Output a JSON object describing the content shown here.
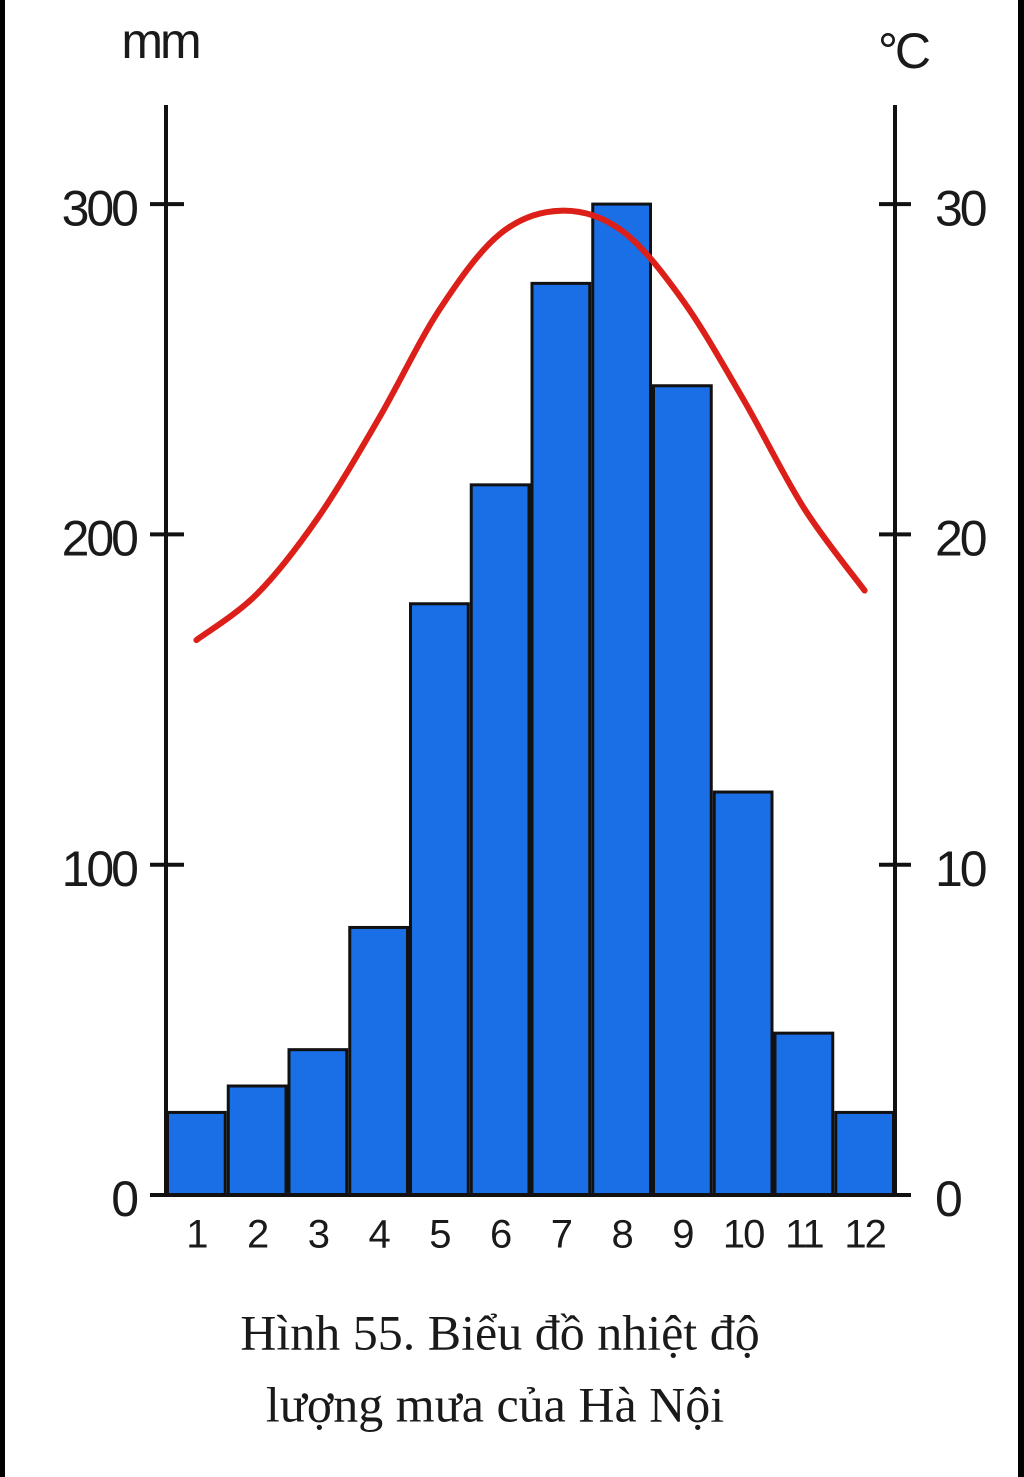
{
  "chart_data": {
    "type": "bar",
    "title_lines": [
      "Hình 55. Biểu đồ nhiệt độ",
      "lượng mưa của Hà Nội"
    ],
    "y_label": "mm",
    "y2_label": "°C",
    "categories": [
      "1",
      "2",
      "3",
      "4",
      "5",
      "6",
      "7",
      "8",
      "9",
      "10",
      "11",
      "12"
    ],
    "series": [
      {
        "type": "bar",
        "color": "#1a6ee6",
        "values": [
          25,
          33,
          44,
          81,
          179,
          215,
          276,
          300,
          245,
          122,
          49,
          25
        ]
      },
      {
        "type": "line",
        "axis": "y2",
        "color": "#dd1f1a",
        "values": [
          16.8,
          18.2,
          20.5,
          23.5,
          26.8,
          29.1,
          29.8,
          29.2,
          27.1,
          24.1,
          20.8,
          18.3
        ]
      }
    ],
    "ylim": [
      0,
      330
    ],
    "yticks": [
      0,
      100,
      200,
      300
    ],
    "y2lim": [
      0,
      33
    ],
    "y2ticks": [
      0,
      10,
      20,
      30
    ]
  }
}
